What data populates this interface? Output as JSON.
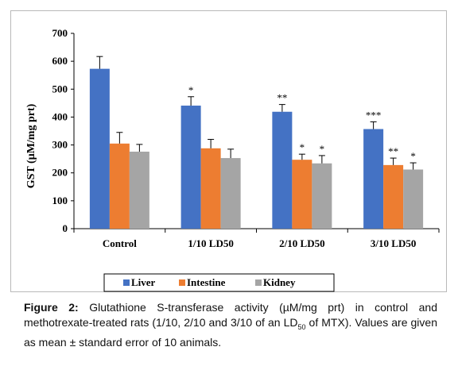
{
  "chart_data": {
    "type": "bar",
    "ylabel": "GST (µM/mg prt)",
    "xlabel": "",
    "ylim": [
      0,
      700
    ],
    "yticks": [
      0,
      100,
      200,
      300,
      400,
      500,
      600,
      700
    ],
    "categories": [
      "Control",
      "1/10 LD50",
      "2/10 LD50",
      "3/10 LD50"
    ],
    "series": [
      {
        "name": "Liver",
        "color": "#4472C4",
        "values": [
          573,
          441,
          419,
          357
        ],
        "errors": [
          44,
          32,
          26,
          26
        ],
        "annotations": [
          "",
          "*",
          "**",
          "***"
        ]
      },
      {
        "name": "Intestine",
        "color": "#ED7D31",
        "values": [
          305,
          288,
          247,
          228
        ],
        "errors": [
          40,
          32,
          20,
          25
        ],
        "annotations": [
          "",
          "",
          "*",
          "**"
        ]
      },
      {
        "name": "Kidney",
        "color": "#A5A5A5",
        "values": [
          276,
          253,
          234,
          212
        ],
        "errors": [
          26,
          32,
          28,
          24
        ],
        "annotations": [
          "",
          "",
          "*",
          "*"
        ]
      }
    ],
    "grid": false,
    "legend_position": "bottom"
  },
  "caption": {
    "label": "Figure 2:",
    "text_before_sub": " Glutathione S-transferase activity (µM/mg prt) in control and methotrexate-treated rats (1/10, 2/10 and 3/10 of an LD",
    "subscript": "50",
    "text_after_sub": " of MTX). Values are given as mean ± standard error of 10 animals."
  }
}
